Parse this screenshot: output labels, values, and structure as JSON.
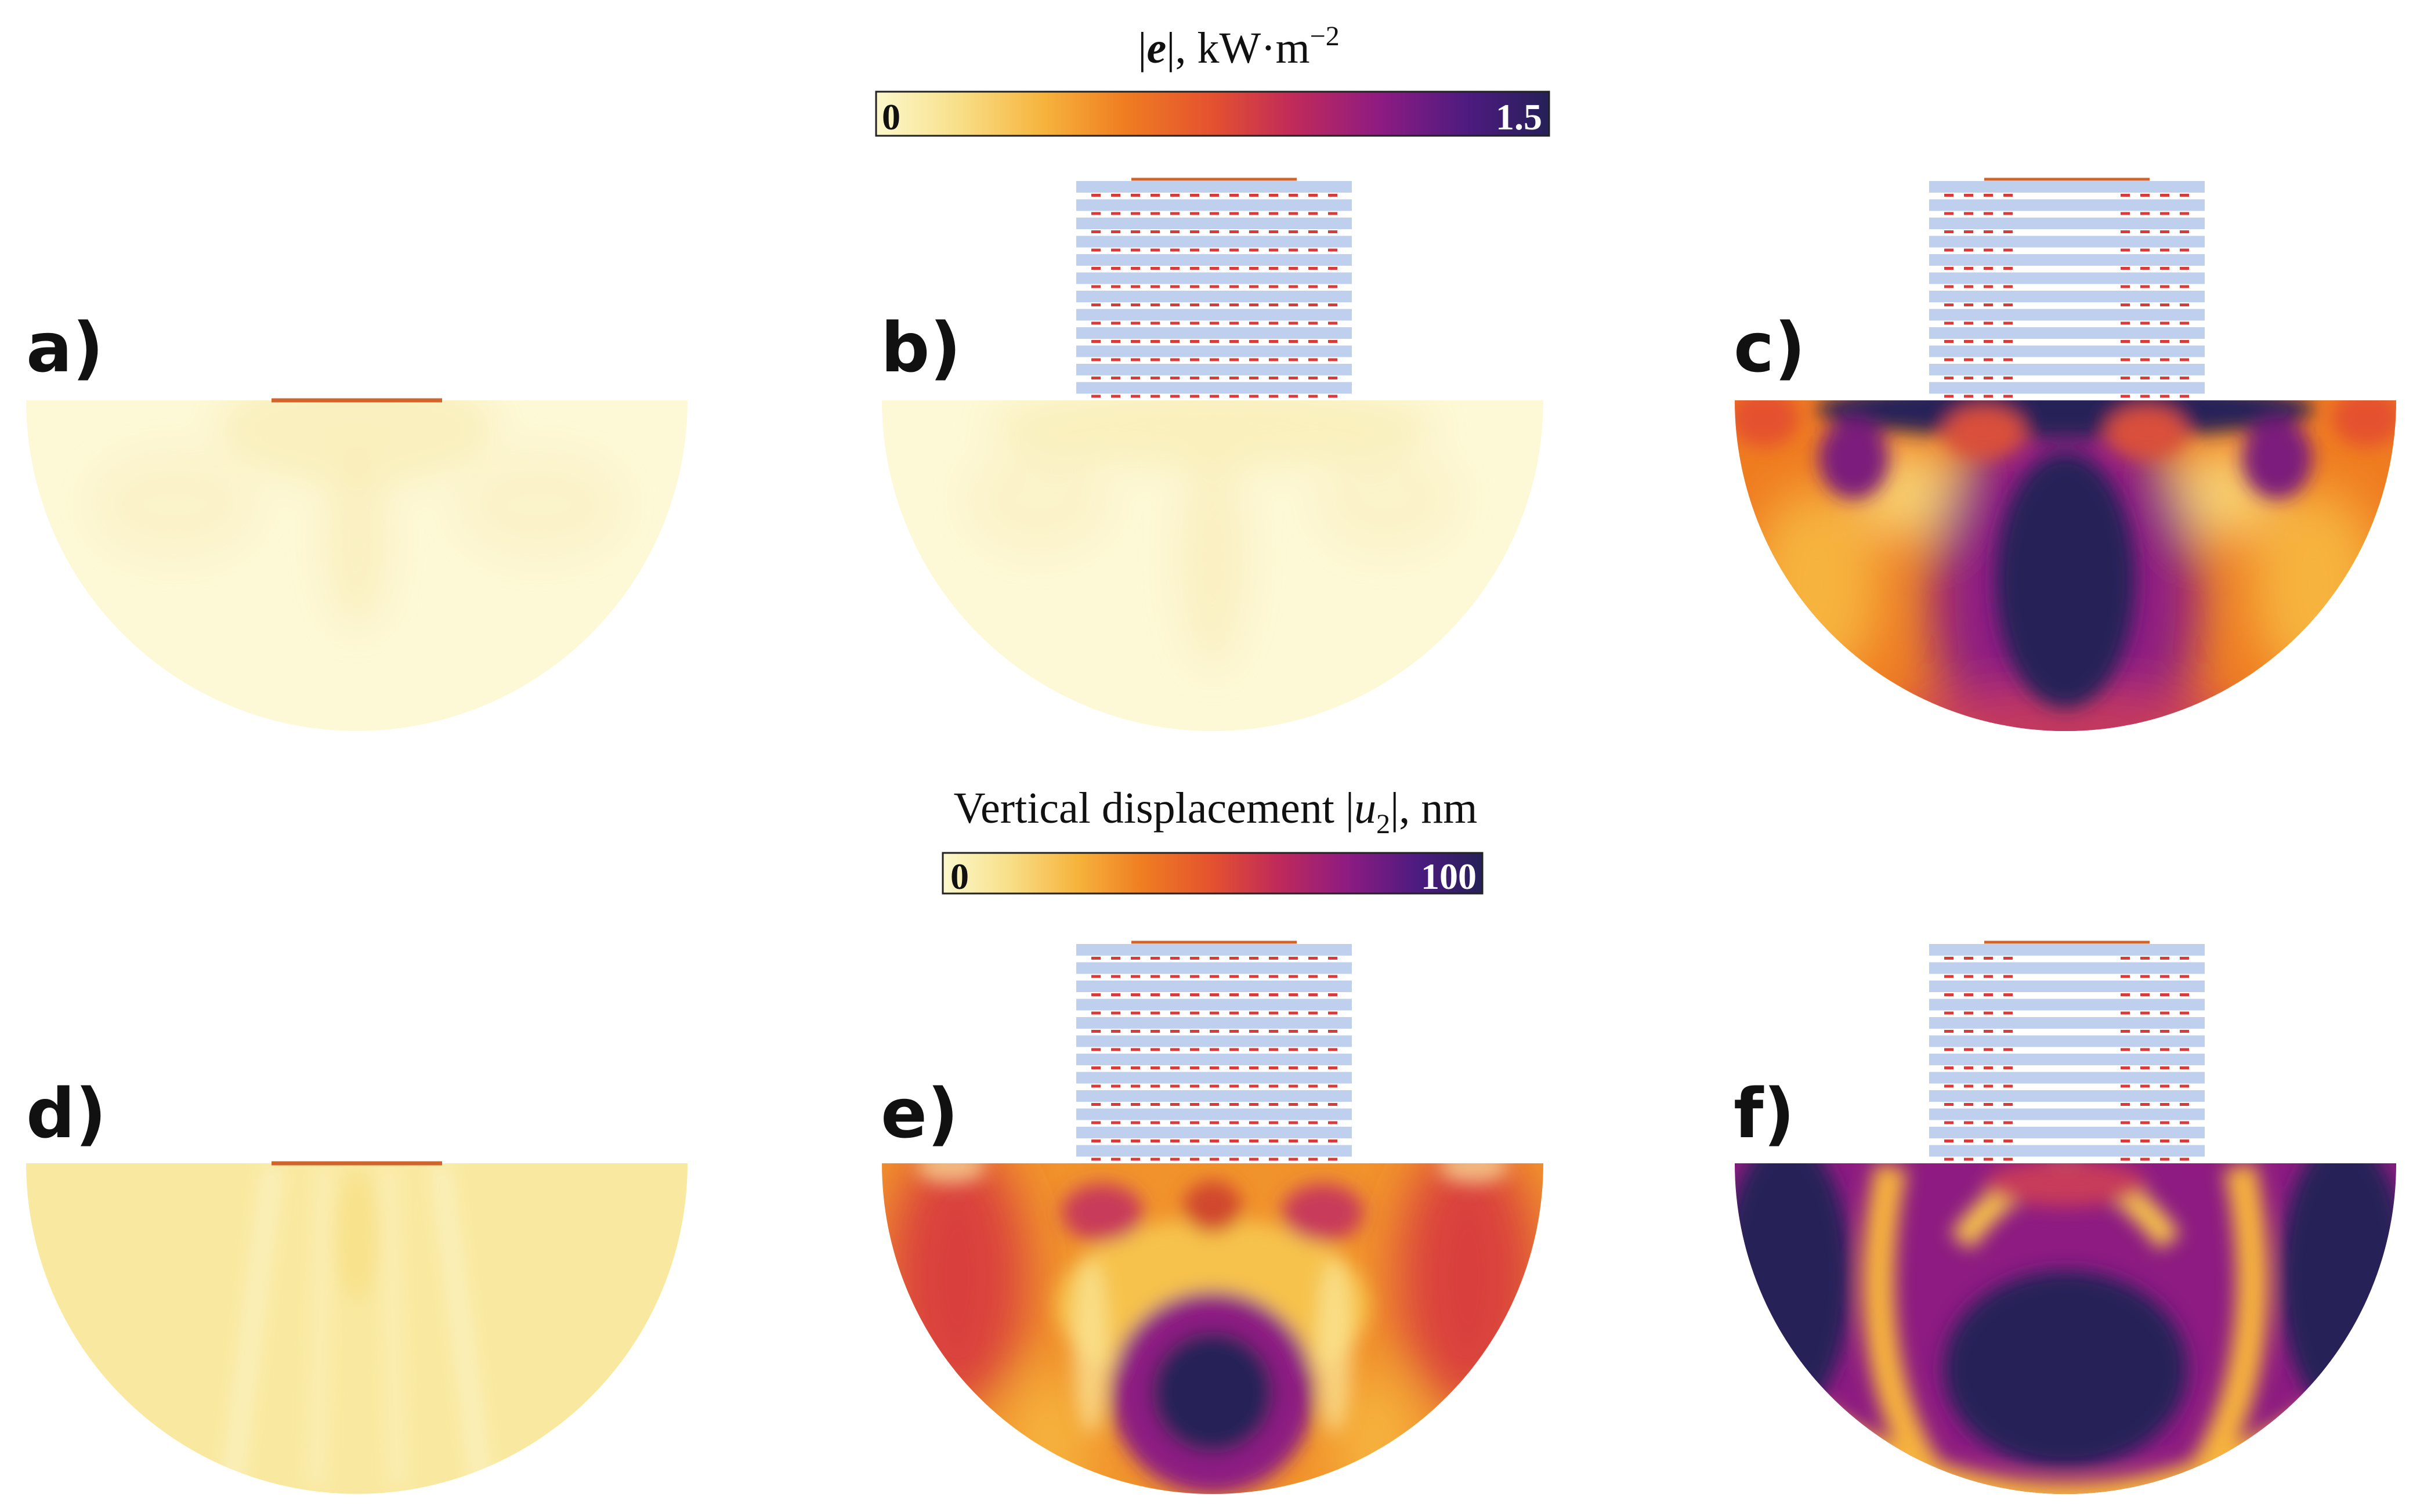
{
  "colorbar_top": {
    "title_abs_open": "|",
    "title_symbol": "e",
    "title_abs_close": "|",
    "title_unit": ", kW·m",
    "title_exponent": "−2",
    "min_label": "0",
    "max_label": "1.5",
    "min_value": 0,
    "max_value": 1.5
  },
  "colorbar_bottom": {
    "title_text": "Vertical displacement |",
    "title_symbol": "u",
    "title_subscript": "2",
    "title_unit": "|, nm",
    "min_label": "0",
    "max_label": "100",
    "min_value": 0,
    "max_value": 100
  },
  "colormap": [
    "#fbf8cc",
    "#f8e08a",
    "#f6b33c",
    "#ef7d21",
    "#e4512f",
    "#c02a5a",
    "#8d1b82",
    "#4d1b80",
    "#262058"
  ],
  "panels": [
    {
      "label": "a)",
      "field": "electric-field",
      "structure": "electrode-only",
      "field_level": "low"
    },
    {
      "label": "b)",
      "field": "electric-field",
      "structure": "full-stack",
      "field_level": "low"
    },
    {
      "label": "c)",
      "field": "electric-field",
      "structure": "split-stack",
      "field_level": "high"
    },
    {
      "label": "d)",
      "field": "displacement",
      "structure": "electrode-only",
      "field_level": "low"
    },
    {
      "label": "e)",
      "field": "displacement",
      "structure": "full-stack",
      "field_level": "medium"
    },
    {
      "label": "f)",
      "field": "displacement",
      "structure": "split-stack",
      "field_level": "high"
    }
  ],
  "colors": {
    "stack_layer": "#bfd0ee",
    "inclusion": "#d93b3b",
    "electrode": "#d0642a"
  }
}
